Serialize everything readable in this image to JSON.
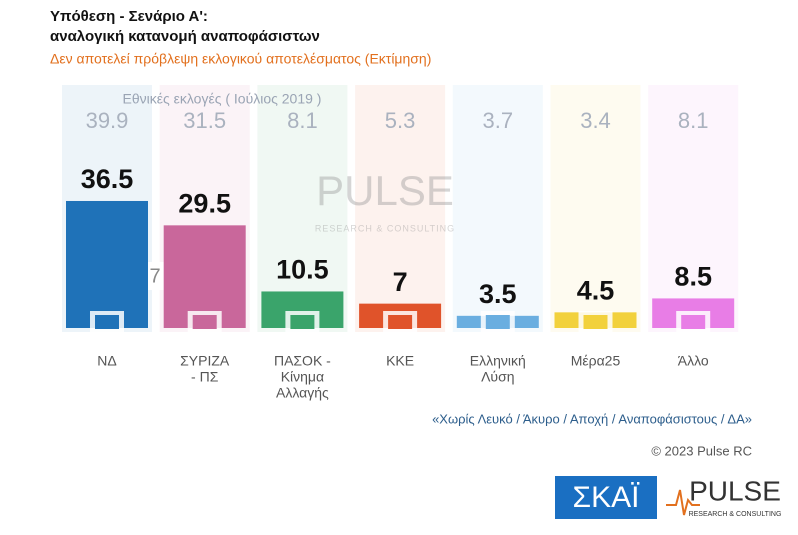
{
  "chart_data": {
    "type": "bar",
    "title": [
      "Υπόθεση - Σενάριο Α':",
      "αναλογική κατανομή αναποφάσιστων"
    ],
    "subtitle": "Δεν αποτελεί πρόβλεψη εκλογικού αποτελέσματος   (Εκτίμηση)",
    "categories": [
      [
        "ΝΔ"
      ],
      [
        "ΣΥΡΙΖΑ",
        "- ΠΣ"
      ],
      [
        "ΠΑΣΟΚ -",
        "Κίνημα",
        "Αλλαγής"
      ],
      [
        "ΚΚΕ"
      ],
      [
        "Ελληνική",
        "Λύση"
      ],
      [
        "Μέρα25"
      ],
      [
        "Άλλο"
      ]
    ],
    "values": [
      36.5,
      29.5,
      10.5,
      7,
      3.5,
      4.5,
      8.5
    ],
    "colors": [
      "#1f72b8",
      "#c9679b",
      "#3aa46b",
      "#e0532a",
      "#6aaee0",
      "#f2d13c",
      "#e87de6"
    ],
    "previous": {
      "label": "Εθνικές εκλογές  ( Ιούλιος 2019 )",
      "values": [
        39.9,
        31.5,
        8.1,
        5.3,
        3.7,
        3.4,
        8.1
      ]
    },
    "annotation": "7",
    "note": "«Χωρίς Λευκό / Άκυρο / Αποχή / Αναποφάσιστους / ΔΑ»",
    "copyright": "© 2023 Pulse RC",
    "logos": {
      "skai": "ΣΚΑΪ",
      "pulse": "PULSE",
      "pulse_sub": "RESEARCH & CONSULTING"
    }
  }
}
